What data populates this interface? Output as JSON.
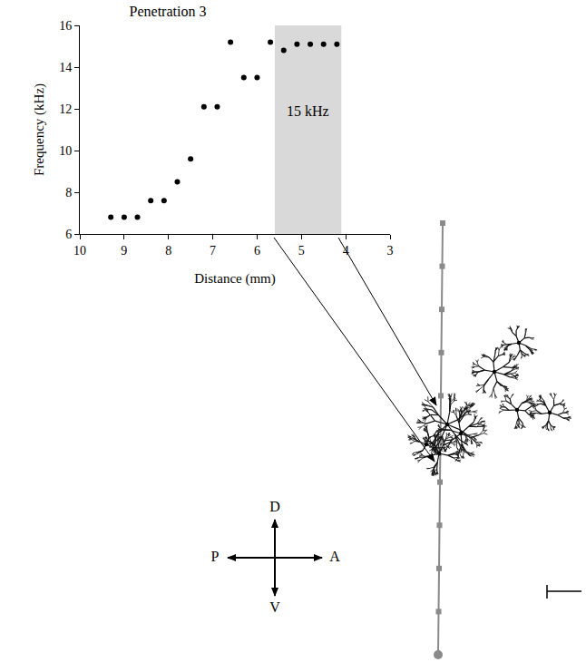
{
  "chart_data": {
    "type": "scatter",
    "title": "Penetration 3",
    "x_label": "Distance (mm)",
    "y_label": "Frequency (kHz)",
    "x": [
      9.3,
      9.0,
      8.7,
      8.4,
      8.1,
      7.8,
      7.5,
      7.2,
      6.9,
      6.6,
      6.3,
      6.0,
      5.7,
      5.4,
      5.1,
      4.8,
      4.5,
      4.2
    ],
    "values": [
      6.8,
      6.8,
      6.8,
      7.6,
      7.6,
      8.5,
      9.6,
      12.1,
      12.1,
      15.2,
      13.5,
      13.5,
      15.2,
      14.8,
      15.1,
      15.1,
      15.1,
      15.1
    ],
    "color": "#000000",
    "marker": "circle",
    "xlim": [
      10,
      3
    ],
    "xticks": [
      10,
      9,
      8,
      7,
      6,
      5,
      4,
      3
    ],
    "ylim": [
      6,
      16
    ],
    "yticks": [
      6,
      8,
      10,
      12,
      14,
      16
    ],
    "grid": false,
    "shaded_band": {
      "from": 5.6,
      "to": 4.1,
      "label": "15 kHz",
      "color": "#d9d9d9"
    }
  },
  "diagram": {
    "compass": {
      "up": "D",
      "down": "V",
      "left": "P",
      "right": "A"
    }
  }
}
